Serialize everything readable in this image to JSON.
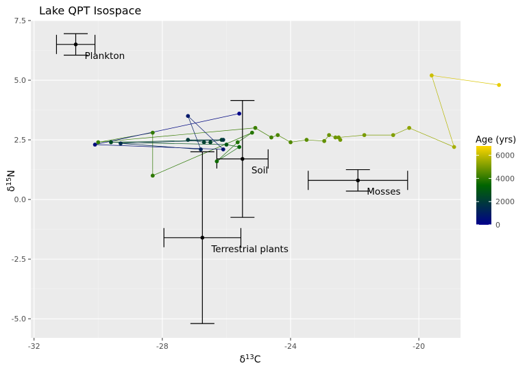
{
  "chart_data": {
    "type": "scatter",
    "title": "Lake QPT Isospace",
    "xlabel": {
      "base": "δ",
      "sup": "13",
      "rest": "C"
    },
    "ylabel": {
      "base": "δ",
      "sup": "15",
      "rest": "N"
    },
    "xlim": [
      -32.1,
      -18.7
    ],
    "ylim": [
      -5.8,
      7.5
    ],
    "x_ticks": [
      -32,
      -28,
      -24,
      -20
    ],
    "x_tick_labels": [
      "-32",
      "-28",
      "-24",
      "-20"
    ],
    "y_ticks": [
      -5,
      -2.5,
      0,
      2.5,
      5,
      7.5
    ],
    "y_tick_labels": [
      "-5.0",
      "-2.5",
      "0.0",
      "2.5",
      "5.0",
      "7.5"
    ],
    "grid": true,
    "colors": {
      "panel": "#ebebeb",
      "grid_major": "#ffffff",
      "grid_minor": "#f4f4f4",
      "source": "#000000",
      "age_low": "#00008b",
      "age_mid": "#006400",
      "age_high": "#ffd700"
    },
    "sources": [
      {
        "name": "Plankton",
        "x": -30.7,
        "y": 6.5,
        "x_err": 0.6,
        "y_err": 0.45
      },
      {
        "name": "Soil",
        "x": -25.5,
        "y": 1.7,
        "x_err": 0.8,
        "y_err": 2.45
      },
      {
        "name": "Mosses",
        "x": -21.9,
        "y": 0.8,
        "x_err": 1.55,
        "y_err": 0.45
      },
      {
        "name": "Terrestrial plants",
        "x": -26.75,
        "y": -1.6,
        "x_err": 1.2,
        "y_err": 3.6
      }
    ],
    "trajectory": [
      {
        "age": 6500,
        "x": -17.5,
        "y": 4.8
      },
      {
        "age": 6100,
        "x": -19.6,
        "y": 5.2
      },
      {
        "age": 5600,
        "x": -18.9,
        "y": 2.2
      },
      {
        "age": 5300,
        "x": -20.3,
        "y": 3.0
      },
      {
        "age": 5100,
        "x": -20.8,
        "y": 2.7
      },
      {
        "age": 5000,
        "x": -21.7,
        "y": 2.7
      },
      {
        "age": 4900,
        "x": -22.5,
        "y": 2.6
      },
      {
        "age": 4900,
        "x": -22.45,
        "y": 2.5
      },
      {
        "age": 4850,
        "x": -22.6,
        "y": 2.6
      },
      {
        "age": 4800,
        "x": -22.8,
        "y": 2.7
      },
      {
        "age": 4700,
        "x": -22.95,
        "y": 2.45
      },
      {
        "age": 4600,
        "x": -23.5,
        "y": 2.5
      },
      {
        "age": 4500,
        "x": -24.0,
        "y": 2.4
      },
      {
        "age": 4400,
        "x": -24.4,
        "y": 2.7
      },
      {
        "age": 4300,
        "x": -24.6,
        "y": 2.6
      },
      {
        "age": 4200,
        "x": -25.1,
        "y": 3.0
      },
      {
        "age": 4100,
        "x": -30.0,
        "y": 2.4
      },
      {
        "age": 4050,
        "x": -28.3,
        "y": 2.8
      },
      {
        "age": 4000,
        "x": -28.3,
        "y": 1.0
      },
      {
        "age": 3900,
        "x": -25.2,
        "y": 2.8
      },
      {
        "age": 3800,
        "x": -25.65,
        "y": 2.4
      },
      {
        "age": 3600,
        "x": -26.3,
        "y": 1.6
      },
      {
        "age": 3400,
        "x": -25.6,
        "y": 2.2
      },
      {
        "age": 3000,
        "x": -26.0,
        "y": 2.3
      },
      {
        "age": 2500,
        "x": -29.6,
        "y": 2.4
      },
      {
        "age": 2400,
        "x": -26.15,
        "y": 2.5
      },
      {
        "age": 2300,
        "x": -26.5,
        "y": 2.4
      },
      {
        "age": 2200,
        "x": -26.7,
        "y": 2.4
      },
      {
        "age": 2000,
        "x": -27.2,
        "y": 2.5
      },
      {
        "age": 1800,
        "x": -26.1,
        "y": 2.5
      },
      {
        "age": 1500,
        "x": -29.3,
        "y": 2.35
      },
      {
        "age": 1200,
        "x": -26.8,
        "y": 2.1
      },
      {
        "age": 800,
        "x": -27.2,
        "y": 3.5
      },
      {
        "age": 600,
        "x": -26.1,
        "y": 2.1
      },
      {
        "age": 400,
        "x": -30.1,
        "y": 2.3
      },
      {
        "age": 100,
        "x": -25.6,
        "y": 3.6
      }
    ],
    "legend": {
      "title": "Age (yrs)",
      "position": "right",
      "range": [
        0,
        6800
      ],
      "ticks": [
        0,
        2000,
        4000,
        6000
      ],
      "tick_labels": [
        "0",
        "2000",
        "4000",
        "6000"
      ]
    }
  }
}
